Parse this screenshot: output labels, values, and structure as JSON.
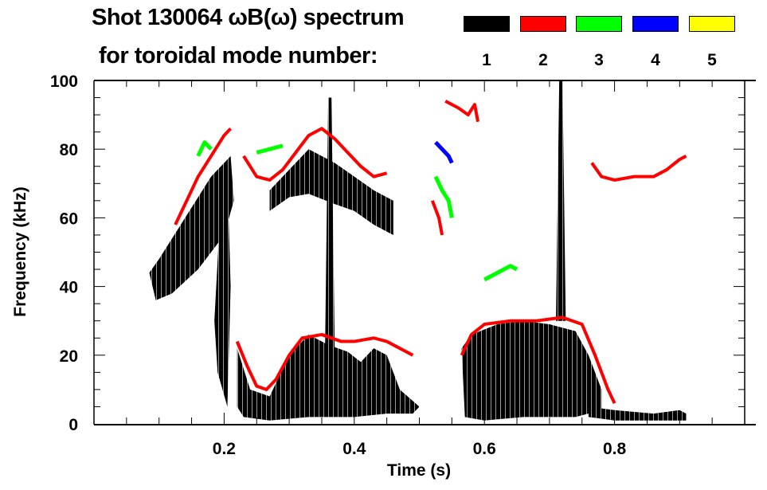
{
  "chart_data": {
    "type": "heatmap",
    "title_line1": "Shot 130064 ωB(ω) spectrum",
    "title_line2": "for toroidal mode number:",
    "xlabel": "Time (s)",
    "ylabel": "Frequency (kHz)",
    "xlim": [
      0.0,
      1.0
    ],
    "ylim": [
      0,
      100
    ],
    "xticks": [
      0.2,
      0.4,
      0.6,
      0.8
    ],
    "xtick_labels": [
      "0.2",
      "0.4",
      "0.6",
      "0.8"
    ],
    "yticks": [
      0,
      20,
      40,
      60,
      80,
      100
    ],
    "ytick_labels": [
      "0",
      "20",
      "40",
      "60",
      "80",
      "100"
    ],
    "x_minor_step": 0.05,
    "y_minor_step": 5,
    "legend": [
      {
        "label": "1",
        "color": "#000000"
      },
      {
        "label": "2",
        "color": "#ff0000"
      },
      {
        "label": "3",
        "color": "#00ff00"
      },
      {
        "label": "4",
        "color": "#0000ff"
      },
      {
        "label": "5",
        "color": "#ffff00"
      }
    ],
    "regions": [
      {
        "mode": 1,
        "points": [
          [
            0.085,
            44
          ],
          [
            0.1,
            48
          ],
          [
            0.14,
            60
          ],
          [
            0.18,
            72
          ],
          [
            0.21,
            78
          ],
          [
            0.215,
            65
          ],
          [
            0.2,
            55
          ],
          [
            0.16,
            45
          ],
          [
            0.12,
            38
          ],
          [
            0.095,
            36
          ]
        ]
      },
      {
        "mode": 1,
        "points": [
          [
            0.185,
            30
          ],
          [
            0.195,
            65
          ],
          [
            0.205,
            72
          ],
          [
            0.21,
            40
          ],
          [
            0.205,
            5
          ],
          [
            0.19,
            15
          ]
        ]
      },
      {
        "mode": 1,
        "points": [
          [
            0.22,
            22
          ],
          [
            0.24,
            10
          ],
          [
            0.27,
            8
          ],
          [
            0.3,
            20
          ],
          [
            0.33,
            26
          ],
          [
            0.36,
            23
          ],
          [
            0.39,
            21
          ],
          [
            0.41,
            18
          ],
          [
            0.43,
            22
          ],
          [
            0.45,
            20
          ],
          [
            0.47,
            10
          ],
          [
            0.5,
            5
          ],
          [
            0.49,
            3
          ],
          [
            0.45,
            3
          ],
          [
            0.4,
            2
          ],
          [
            0.33,
            2
          ],
          [
            0.27,
            1
          ],
          [
            0.23,
            2
          ],
          [
            0.22,
            5
          ]
        ]
      },
      {
        "mode": 1,
        "points": [
          [
            0.27,
            68
          ],
          [
            0.3,
            74
          ],
          [
            0.33,
            80
          ],
          [
            0.37,
            76
          ],
          [
            0.4,
            72
          ],
          [
            0.43,
            68
          ],
          [
            0.46,
            65
          ],
          [
            0.46,
            55
          ],
          [
            0.43,
            58
          ],
          [
            0.4,
            62
          ],
          [
            0.37,
            64
          ],
          [
            0.33,
            67
          ],
          [
            0.3,
            66
          ],
          [
            0.27,
            62
          ]
        ]
      },
      {
        "mode": 1,
        "points": [
          [
            0.565,
            22
          ],
          [
            0.58,
            26
          ],
          [
            0.62,
            29
          ],
          [
            0.66,
            30
          ],
          [
            0.7,
            29
          ],
          [
            0.74,
            27
          ],
          [
            0.76,
            20
          ],
          [
            0.78,
            10
          ],
          [
            0.78,
            4
          ],
          [
            0.74,
            2
          ],
          [
            0.66,
            2
          ],
          [
            0.6,
            1
          ],
          [
            0.57,
            2
          ]
        ]
      },
      {
        "mode": 1,
        "points": [
          [
            0.76,
            5
          ],
          [
            0.8,
            4
          ],
          [
            0.86,
            3
          ],
          [
            0.9,
            4
          ],
          [
            0.91,
            3
          ],
          [
            0.91,
            1
          ],
          [
            0.85,
            1
          ],
          [
            0.8,
            1
          ],
          [
            0.76,
            2
          ]
        ]
      },
      {
        "mode": 1,
        "points": [
          [
            0.355,
            20
          ],
          [
            0.36,
            95
          ],
          [
            0.365,
            95
          ],
          [
            0.37,
            20
          ]
        ]
      },
      {
        "mode": 1,
        "points": [
          [
            0.71,
            30
          ],
          [
            0.715,
            100
          ],
          [
            0.72,
            100
          ],
          [
            0.725,
            30
          ]
        ]
      }
    ],
    "traces": [
      {
        "mode": 2,
        "points": [
          [
            0.125,
            58
          ],
          [
            0.14,
            64
          ],
          [
            0.16,
            72
          ],
          [
            0.18,
            78
          ],
          [
            0.2,
            84
          ],
          [
            0.21,
            86
          ]
        ]
      },
      {
        "mode": 2,
        "points": [
          [
            0.23,
            78
          ],
          [
            0.25,
            72
          ],
          [
            0.27,
            71
          ],
          [
            0.29,
            74
          ],
          [
            0.31,
            79
          ],
          [
            0.33,
            84
          ],
          [
            0.35,
            86
          ],
          [
            0.37,
            83
          ],
          [
            0.39,
            79
          ],
          [
            0.41,
            75
          ],
          [
            0.43,
            72
          ],
          [
            0.45,
            73
          ]
        ]
      },
      {
        "mode": 2,
        "points": [
          [
            0.22,
            24
          ],
          [
            0.235,
            17
          ],
          [
            0.25,
            11
          ],
          [
            0.265,
            10
          ],
          [
            0.28,
            13
          ],
          [
            0.3,
            20
          ],
          [
            0.32,
            25
          ],
          [
            0.35,
            26
          ],
          [
            0.38,
            24
          ],
          [
            0.4,
            24
          ],
          [
            0.43,
            25
          ],
          [
            0.45,
            24
          ],
          [
            0.47,
            22
          ],
          [
            0.49,
            20
          ]
        ]
      },
      {
        "mode": 2,
        "points": [
          [
            0.565,
            20
          ],
          [
            0.58,
            26
          ],
          [
            0.6,
            29
          ],
          [
            0.64,
            30
          ],
          [
            0.68,
            30
          ],
          [
            0.72,
            31
          ],
          [
            0.75,
            29
          ],
          [
            0.77,
            20
          ],
          [
            0.79,
            10
          ],
          [
            0.8,
            6
          ]
        ]
      },
      {
        "mode": 2,
        "points": [
          [
            0.765,
            76
          ],
          [
            0.78,
            72
          ],
          [
            0.8,
            71
          ],
          [
            0.83,
            72
          ],
          [
            0.86,
            72
          ],
          [
            0.88,
            74
          ],
          [
            0.9,
            77
          ],
          [
            0.91,
            78
          ]
        ]
      },
      {
        "mode": 2,
        "points": [
          [
            0.54,
            94
          ],
          [
            0.56,
            92
          ],
          [
            0.575,
            90
          ],
          [
            0.585,
            93
          ],
          [
            0.59,
            88
          ]
        ]
      },
      {
        "mode": 2,
        "points": [
          [
            0.52,
            65
          ],
          [
            0.53,
            60
          ],
          [
            0.535,
            55
          ]
        ]
      },
      {
        "mode": 3,
        "points": [
          [
            0.525,
            72
          ],
          [
            0.535,
            68
          ],
          [
            0.545,
            65
          ],
          [
            0.55,
            60
          ]
        ]
      },
      {
        "mode": 3,
        "points": [
          [
            0.6,
            42
          ],
          [
            0.62,
            44
          ],
          [
            0.64,
            46
          ],
          [
            0.65,
            45
          ]
        ]
      },
      {
        "mode": 3,
        "points": [
          [
            0.16,
            78
          ],
          [
            0.17,
            82
          ],
          [
            0.18,
            80
          ]
        ]
      },
      {
        "mode": 3,
        "points": [
          [
            0.25,
            79
          ],
          [
            0.27,
            80
          ],
          [
            0.29,
            81
          ]
        ]
      },
      {
        "mode": 4,
        "points": [
          [
            0.525,
            82
          ],
          [
            0.535,
            80
          ],
          [
            0.545,
            78
          ],
          [
            0.55,
            76
          ]
        ]
      }
    ]
  }
}
